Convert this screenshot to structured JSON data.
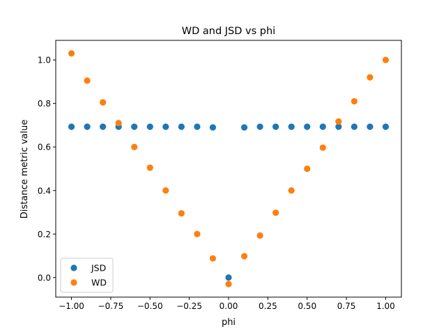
{
  "chart_data": {
    "type": "scatter",
    "title": "WD and JSD vs phi",
    "xlabel": "phi",
    "ylabel": "Distance metric value",
    "xlim": [
      -1.1,
      1.1
    ],
    "ylim": [
      -0.09,
      1.09
    ],
    "xticks": [
      -1.0,
      -0.75,
      -0.5,
      -0.25,
      0.0,
      0.25,
      0.5,
      0.75,
      1.0
    ],
    "xtick_labels": [
      "−1.00",
      "−0.75",
      "−0.50",
      "−0.25",
      "0.00",
      "0.25",
      "0.50",
      "0.75",
      "1.00"
    ],
    "yticks": [
      0.0,
      0.2,
      0.4,
      0.6,
      0.8,
      1.0
    ],
    "ytick_labels": [
      "0.0",
      "0.2",
      "0.4",
      "0.6",
      "0.8",
      "1.0"
    ],
    "grid": false,
    "legend_position": "lower-left",
    "series": [
      {
        "name": "JSD",
        "color": "#1f77b4",
        "x": [
          -1.0,
          -0.9,
          -0.8,
          -0.7,
          -0.6,
          -0.5,
          -0.4,
          -0.3,
          -0.2,
          -0.1,
          0.0,
          0.1,
          0.2,
          0.3,
          0.4,
          0.5,
          0.6,
          0.7,
          0.8,
          0.9,
          1.0
        ],
        "y": [
          0.693,
          0.693,
          0.693,
          0.693,
          0.693,
          0.693,
          0.693,
          0.693,
          0.693,
          0.69,
          0.0,
          0.69,
          0.693,
          0.693,
          0.693,
          0.693,
          0.693,
          0.693,
          0.693,
          0.693,
          0.693
        ]
      },
      {
        "name": "WD",
        "color": "#ff7f0e",
        "x": [
          -1.0,
          -0.9,
          -0.8,
          -0.7,
          -0.6,
          -0.5,
          -0.4,
          -0.3,
          -0.2,
          -0.1,
          0.0,
          0.1,
          0.2,
          0.3,
          0.4,
          0.5,
          0.6,
          0.7,
          0.8,
          0.9,
          1.0
        ],
        "y": [
          1.03,
          0.905,
          0.805,
          0.71,
          0.6,
          0.505,
          0.4,
          0.295,
          0.2,
          0.088,
          -0.03,
          0.098,
          0.193,
          0.298,
          0.4,
          0.5,
          0.597,
          0.717,
          0.81,
          0.92,
          1.0
        ]
      }
    ]
  }
}
